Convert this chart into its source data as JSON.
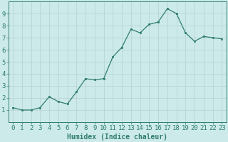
{
  "x": [
    0,
    1,
    2,
    3,
    4,
    5,
    6,
    7,
    8,
    9,
    10,
    11,
    12,
    13,
    14,
    15,
    16,
    17,
    18,
    19,
    20,
    21,
    22,
    23
  ],
  "y": [
    1.2,
    1.0,
    1.0,
    1.2,
    2.1,
    1.7,
    1.5,
    2.5,
    3.6,
    3.5,
    3.6,
    5.4,
    6.2,
    7.7,
    7.4,
    8.1,
    8.3,
    9.4,
    9.0,
    7.4,
    6.7,
    7.1,
    7.0,
    6.9
  ],
  "xlabel": "Humidex (Indice chaleur)",
  "ylim": [
    0,
    10
  ],
  "xlim": [
    -0.5,
    23.5
  ],
  "yticks": [
    1,
    2,
    3,
    4,
    5,
    6,
    7,
    8,
    9
  ],
  "xticks": [
    0,
    1,
    2,
    3,
    4,
    5,
    6,
    7,
    8,
    9,
    10,
    11,
    12,
    13,
    14,
    15,
    16,
    17,
    18,
    19,
    20,
    21,
    22,
    23
  ],
  "line_color": "#2e7d6e",
  "marker_color": "#2e7d6e",
  "bg_color": "#cdeaea",
  "grid_color": "#b8d4d4",
  "axis_color": "#2e7d6e",
  "label_color": "#2e7d6e",
  "xlabel_fontsize": 7,
  "tick_fontsize": 6.5
}
